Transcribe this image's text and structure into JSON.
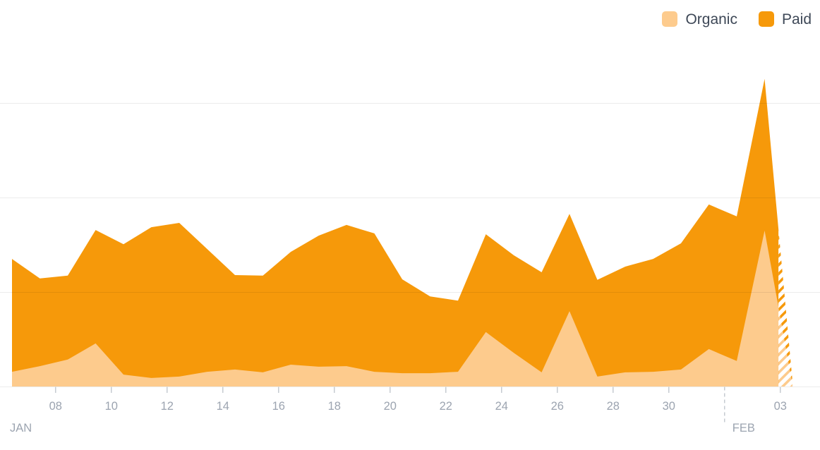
{
  "legend": {
    "position": "top-right",
    "items": [
      {
        "label": "Organic",
        "color": "#FDCB8D"
      },
      {
        "label": "Paid",
        "color": "#F6990A"
      }
    ]
  },
  "chart_data": {
    "type": "area",
    "stacked": true,
    "title": "",
    "xlabel": "",
    "ylabel": "",
    "x_unit": "day",
    "x": [
      "Jan 06",
      "Jan 07",
      "Jan 08",
      "Jan 09",
      "Jan 10",
      "Jan 11",
      "Jan 12",
      "Jan 13",
      "Jan 14",
      "Jan 15",
      "Jan 16",
      "Jan 17",
      "Jan 18",
      "Jan 19",
      "Jan 20",
      "Jan 21",
      "Jan 22",
      "Jan 23",
      "Jan 24",
      "Jan 25",
      "Jan 26",
      "Jan 27",
      "Jan 28",
      "Jan 29",
      "Jan 30",
      "Jan 31",
      "Feb 01",
      "Feb 02",
      "Feb 03"
    ],
    "series": [
      {
        "name": "Organic",
        "color": "#FDCB8D",
        "values": [
          5.2,
          7.2,
          9.5,
          15.2,
          4.2,
          3.0,
          3.5,
          5.2,
          6.0,
          5.0,
          7.7,
          7.0,
          7.2,
          5.2,
          4.7,
          4.7,
          5.2,
          19.2,
          11.9,
          5.0,
          26.6,
          3.5,
          5.0,
          5.2,
          6.0,
          13.2,
          9.0,
          55.0,
          0.7
        ]
      },
      {
        "name": "Paid",
        "color": "#F6990A",
        "values": [
          39.8,
          30.9,
          29.6,
          40.0,
          46.0,
          53.2,
          54.2,
          43.3,
          33.3,
          34.1,
          39.8,
          46.2,
          49.8,
          48.8,
          33.1,
          27.1,
          25.1,
          34.5,
          34.4,
          35.3,
          34.3,
          34.1,
          37.3,
          39.8,
          44.5,
          51.0,
          51.0,
          53.5,
          1.3
        ]
      }
    ],
    "y_axis": {
      "labels_visible": false,
      "min": 0,
      "max_visible_gridline": 100,
      "gridline_values": [
        33.3,
        66.7,
        100
      ]
    },
    "x_ticks": {
      "labels": [
        "08",
        "10",
        "12",
        "14",
        "16",
        "18",
        "20",
        "22",
        "24",
        "26",
        "28",
        "30",
        "03"
      ],
      "day_indices": [
        2,
        4,
        6,
        8,
        10,
        12,
        14,
        16,
        18,
        20,
        22,
        24,
        28
      ]
    },
    "month_labels": [
      {
        "label": "JAN",
        "day_index": 0
      },
      {
        "label": "FEB",
        "day_index": 26
      }
    ],
    "month_boundary_day_index": 26,
    "incomplete_data_hatched_from": "Feb 02",
    "grid": "horizontal",
    "legend_position": "top-right"
  },
  "colors": {
    "organic": "#FDCB8D",
    "paid": "#F6990A",
    "axis_label": "#9CA4B0",
    "legend_text": "#3E4857",
    "tick_mark": "#C6CBD1",
    "month_boundary_dash": "#C6CBD1"
  }
}
